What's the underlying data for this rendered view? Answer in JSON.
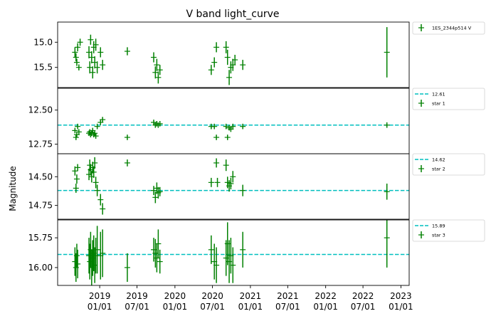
{
  "chart_data": {
    "type": "scatter",
    "title": "V band light_curve",
    "ylabel": "Magnitude",
    "x_tick_labels": [
      [
        "2019",
        "01/01"
      ],
      [
        "2019",
        "07/01"
      ],
      [
        "2020",
        "01/01"
      ],
      [
        "2020",
        "07/01"
      ],
      [
        "2021",
        "01/01"
      ],
      [
        "2021",
        "07/01"
      ],
      [
        "2022",
        "01/01"
      ],
      [
        "2022",
        "07/01"
      ],
      [
        "2023",
        "01/01"
      ]
    ],
    "x_tick_dates": [
      "2019-01-01",
      "2019-07-01",
      "2020-01-01",
      "2020-07-01",
      "2021-01-01",
      "2021-07-01",
      "2022-01-01",
      "2022-07-01",
      "2023-01-01"
    ],
    "xlim": [
      "2018-06-11",
      "2023-02-10"
    ],
    "y_inverted": true,
    "panels": [
      {
        "series_name": "1ES_2344p514 V",
        "ylim": [
          15.9,
          14.6
        ],
        "yticks": [
          15.0,
          15.5
        ],
        "ytick_labels": [
          "15.0",
          "15.5"
        ],
        "ref_line": null,
        "ref_label": "",
        "points": [
          {
            "x": "2018-09-03",
            "y": 15.2,
            "e": 0.1
          },
          {
            "x": "2018-09-08",
            "y": 15.3,
            "e": 0.08
          },
          {
            "x": "2018-09-12",
            "y": 15.4,
            "e": 0.07
          },
          {
            "x": "2018-09-16",
            "y": 15.1,
            "e": 0.08
          },
          {
            "x": "2018-09-22",
            "y": 15.5,
            "e": 0.06
          },
          {
            "x": "2018-09-28",
            "y": 15.0,
            "e": 0.07
          },
          {
            "x": "2018-11-10",
            "y": 15.2,
            "e": 0.12
          },
          {
            "x": "2018-11-14",
            "y": 15.5,
            "e": 0.12
          },
          {
            "x": "2018-11-18",
            "y": 14.95,
            "e": 0.1
          },
          {
            "x": "2018-11-23",
            "y": 15.3,
            "e": 0.12
          },
          {
            "x": "2018-11-28",
            "y": 15.6,
            "e": 0.12
          },
          {
            "x": "2018-12-03",
            "y": 15.1,
            "e": 0.12
          },
          {
            "x": "2018-12-08",
            "y": 15.4,
            "e": 0.12
          },
          {
            "x": "2018-12-13",
            "y": 15.05,
            "e": 0.12
          },
          {
            "x": "2018-12-20",
            "y": 15.5,
            "e": 0.12
          },
          {
            "x": "2019-01-05",
            "y": 15.2,
            "e": 0.1
          },
          {
            "x": "2019-01-15",
            "y": 15.45,
            "e": 0.1
          },
          {
            "x": "2019-05-15",
            "y": 15.18,
            "e": 0.08
          },
          {
            "x": "2019-09-20",
            "y": 15.3,
            "e": 0.1
          },
          {
            "x": "2019-09-28",
            "y": 15.6,
            "e": 0.12
          },
          {
            "x": "2019-10-05",
            "y": 15.45,
            "e": 0.12
          },
          {
            "x": "2019-10-12",
            "y": 15.7,
            "e": 0.12
          },
          {
            "x": "2019-10-20",
            "y": 15.55,
            "e": 0.1
          },
          {
            "x": "2020-06-25",
            "y": 15.55,
            "e": 0.1
          },
          {
            "x": "2020-07-10",
            "y": 15.4,
            "e": 0.1
          },
          {
            "x": "2020-07-20",
            "y": 15.1,
            "e": 0.1
          },
          {
            "x": "2020-09-05",
            "y": 15.1,
            "e": 0.12
          },
          {
            "x": "2020-09-12",
            "y": 15.3,
            "e": 0.15
          },
          {
            "x": "2020-09-20",
            "y": 15.7,
            "e": 0.15
          },
          {
            "x": "2020-09-28",
            "y": 15.5,
            "e": 0.12
          },
          {
            "x": "2020-10-08",
            "y": 15.45,
            "e": 0.12
          },
          {
            "x": "2020-10-18",
            "y": 15.35,
            "e": 0.1
          },
          {
            "x": "2020-11-25",
            "y": 15.45,
            "e": 0.1
          },
          {
            "x": "2022-10-25",
            "y": 15.2,
            "e": 0.5
          }
        ]
      },
      {
        "series_name": "star 1",
        "ylim": [
          12.82,
          12.34
        ],
        "yticks": [
          12.5,
          12.75
        ],
        "ytick_labels": [
          "12.50",
          "12.75"
        ],
        "ref_line": 12.61,
        "ref_label": "12.61",
        "points": [
          {
            "x": "2018-09-03",
            "y": 12.65,
            "e": 0.02
          },
          {
            "x": "2018-09-08",
            "y": 12.7,
            "e": 0.02
          },
          {
            "x": "2018-09-12",
            "y": 12.68,
            "e": 0.02
          },
          {
            "x": "2018-09-16",
            "y": 12.62,
            "e": 0.02
          },
          {
            "x": "2018-09-22",
            "y": 12.66,
            "e": 0.02
          },
          {
            "x": "2018-11-10",
            "y": 12.67,
            "e": 0.02
          },
          {
            "x": "2018-11-14",
            "y": 12.66,
            "e": 0.02
          },
          {
            "x": "2018-11-18",
            "y": 12.68,
            "e": 0.02
          },
          {
            "x": "2018-11-23",
            "y": 12.67,
            "e": 0.02
          },
          {
            "x": "2018-11-28",
            "y": 12.65,
            "e": 0.02
          },
          {
            "x": "2018-12-03",
            "y": 12.68,
            "e": 0.02
          },
          {
            "x": "2018-12-08",
            "y": 12.67,
            "e": 0.02
          },
          {
            "x": "2018-12-13",
            "y": 12.69,
            "e": 0.02
          },
          {
            "x": "2018-12-20",
            "y": 12.62,
            "e": 0.02
          },
          {
            "x": "2019-01-05",
            "y": 12.59,
            "e": 0.02
          },
          {
            "x": "2019-01-15",
            "y": 12.57,
            "e": 0.02
          },
          {
            "x": "2019-05-15",
            "y": 12.7,
            "e": 0.02
          },
          {
            "x": "2019-09-20",
            "y": 12.59,
            "e": 0.02
          },
          {
            "x": "2019-09-28",
            "y": 12.61,
            "e": 0.02
          },
          {
            "x": "2019-10-05",
            "y": 12.6,
            "e": 0.02
          },
          {
            "x": "2019-10-12",
            "y": 12.61,
            "e": 0.02
          },
          {
            "x": "2019-10-20",
            "y": 12.6,
            "e": 0.02
          },
          {
            "x": "2020-06-25",
            "y": 12.62,
            "e": 0.02
          },
          {
            "x": "2020-07-10",
            "y": 12.62,
            "e": 0.02
          },
          {
            "x": "2020-07-20",
            "y": 12.7,
            "e": 0.02
          },
          {
            "x": "2020-09-05",
            "y": 12.62,
            "e": 0.02
          },
          {
            "x": "2020-09-12",
            "y": 12.7,
            "e": 0.02
          },
          {
            "x": "2020-09-20",
            "y": 12.63,
            "e": 0.02
          },
          {
            "x": "2020-09-28",
            "y": 12.64,
            "e": 0.02
          },
          {
            "x": "2020-10-08",
            "y": 12.62,
            "e": 0.02
          },
          {
            "x": "2020-11-25",
            "y": 12.62,
            "e": 0.02
          },
          {
            "x": "2022-10-25",
            "y": 12.61,
            "e": 0.02
          }
        ]
      },
      {
        "series_name": "star 2",
        "ylim": [
          14.87,
          14.3
        ],
        "yticks": [
          14.5,
          14.75
        ],
        "ytick_labels": [
          "14.50",
          "14.75"
        ],
        "ref_line": 14.62,
        "ref_label": "14.62",
        "points": [
          {
            "x": "2018-09-03",
            "y": 14.45,
            "e": 0.04
          },
          {
            "x": "2018-09-08",
            "y": 14.6,
            "e": 0.04
          },
          {
            "x": "2018-09-12",
            "y": 14.52,
            "e": 0.04
          },
          {
            "x": "2018-09-16",
            "y": 14.42,
            "e": 0.03
          },
          {
            "x": "2018-11-10",
            "y": 14.48,
            "e": 0.05
          },
          {
            "x": "2018-11-14",
            "y": 14.4,
            "e": 0.05
          },
          {
            "x": "2018-11-18",
            "y": 14.44,
            "e": 0.05
          },
          {
            "x": "2018-11-23",
            "y": 14.5,
            "e": 0.05
          },
          {
            "x": "2018-11-28",
            "y": 14.42,
            "e": 0.05
          },
          {
            "x": "2018-12-03",
            "y": 14.46,
            "e": 0.05
          },
          {
            "x": "2018-12-08",
            "y": 14.38,
            "e": 0.05
          },
          {
            "x": "2018-12-13",
            "y": 14.55,
            "e": 0.05
          },
          {
            "x": "2018-12-20",
            "y": 14.62,
            "e": 0.05
          },
          {
            "x": "2019-01-05",
            "y": 14.7,
            "e": 0.05
          },
          {
            "x": "2019-01-15",
            "y": 14.78,
            "e": 0.05
          },
          {
            "x": "2019-05-15",
            "y": 14.38,
            "e": 0.03
          },
          {
            "x": "2019-09-20",
            "y": 14.62,
            "e": 0.04
          },
          {
            "x": "2019-09-28",
            "y": 14.68,
            "e": 0.05
          },
          {
            "x": "2019-10-05",
            "y": 14.6,
            "e": 0.05
          },
          {
            "x": "2019-10-12",
            "y": 14.64,
            "e": 0.05
          },
          {
            "x": "2019-10-20",
            "y": 14.63,
            "e": 0.04
          },
          {
            "x": "2020-06-25",
            "y": 14.55,
            "e": 0.04
          },
          {
            "x": "2020-07-20",
            "y": 14.38,
            "e": 0.04
          },
          {
            "x": "2020-07-25",
            "y": 14.55,
            "e": 0.04
          },
          {
            "x": "2020-09-05",
            "y": 14.4,
            "e": 0.05
          },
          {
            "x": "2020-09-12",
            "y": 14.55,
            "e": 0.05
          },
          {
            "x": "2020-09-20",
            "y": 14.58,
            "e": 0.05
          },
          {
            "x": "2020-09-28",
            "y": 14.56,
            "e": 0.05
          },
          {
            "x": "2020-10-08",
            "y": 14.5,
            "e": 0.05
          },
          {
            "x": "2020-11-25",
            "y": 14.62,
            "e": 0.05
          },
          {
            "x": "2022-10-25",
            "y": 14.63,
            "e": 0.07
          }
        ]
      },
      {
        "series_name": "star 3",
        "ylim": [
          16.15,
          15.6
        ],
        "yticks": [
          15.75,
          16.0
        ],
        "ytick_labels": [
          "15.75",
          "16.00"
        ],
        "ref_line": 15.89,
        "ref_label": "15.89",
        "points": [
          {
            "x": "2018-09-03",
            "y": 15.95,
            "e": 0.12
          },
          {
            "x": "2018-09-08",
            "y": 16.0,
            "e": 0.12
          },
          {
            "x": "2018-09-12",
            "y": 15.9,
            "e": 0.1
          },
          {
            "x": "2018-09-16",
            "y": 15.97,
            "e": 0.12
          },
          {
            "x": "2018-11-10",
            "y": 15.9,
            "e": 0.15
          },
          {
            "x": "2018-11-14",
            "y": 15.95,
            "e": 0.15
          },
          {
            "x": "2018-11-18",
            "y": 15.85,
            "e": 0.15
          },
          {
            "x": "2018-11-23",
            "y": 16.0,
            "e": 0.15
          },
          {
            "x": "2018-11-28",
            "y": 15.92,
            "e": 0.15
          },
          {
            "x": "2018-12-03",
            "y": 15.88,
            "e": 0.15
          },
          {
            "x": "2018-12-08",
            "y": 15.98,
            "e": 0.15
          },
          {
            "x": "2018-12-13",
            "y": 15.9,
            "e": 0.15
          },
          {
            "x": "2018-12-20",
            "y": 15.85,
            "e": 0.2
          },
          {
            "x": "2019-01-05",
            "y": 15.9,
            "e": 0.2
          },
          {
            "x": "2019-01-15",
            "y": 15.88,
            "e": 0.2
          },
          {
            "x": "2019-05-15",
            "y": 16.0,
            "e": 0.12
          },
          {
            "x": "2019-09-20",
            "y": 15.85,
            "e": 0.1
          },
          {
            "x": "2019-09-28",
            "y": 15.88,
            "e": 0.12
          },
          {
            "x": "2019-10-05",
            "y": 15.92,
            "e": 0.12
          },
          {
            "x": "2019-10-12",
            "y": 15.8,
            "e": 0.12
          },
          {
            "x": "2019-10-20",
            "y": 15.95,
            "e": 0.1
          },
          {
            "x": "2020-06-25",
            "y": 15.85,
            "e": 0.12
          },
          {
            "x": "2020-07-10",
            "y": 15.95,
            "e": 0.15
          },
          {
            "x": "2020-07-20",
            "y": 15.98,
            "e": 0.15
          },
          {
            "x": "2020-09-05",
            "y": 15.92,
            "e": 0.15
          },
          {
            "x": "2020-09-12",
            "y": 15.8,
            "e": 0.18
          },
          {
            "x": "2020-09-20",
            "y": 15.95,
            "e": 0.18
          },
          {
            "x": "2020-09-28",
            "y": 15.9,
            "e": 0.15
          },
          {
            "x": "2020-10-08",
            "y": 15.98,
            "e": 0.15
          },
          {
            "x": "2020-11-25",
            "y": 15.85,
            "e": 0.15
          },
          {
            "x": "2022-10-25",
            "y": 15.75,
            "e": 0.25
          }
        ]
      }
    ],
    "colors": {
      "points": "#008000",
      "ref_line": "#00bfbf",
      "axes": "#000000"
    },
    "grid": false,
    "legend_position": "outside-right"
  }
}
